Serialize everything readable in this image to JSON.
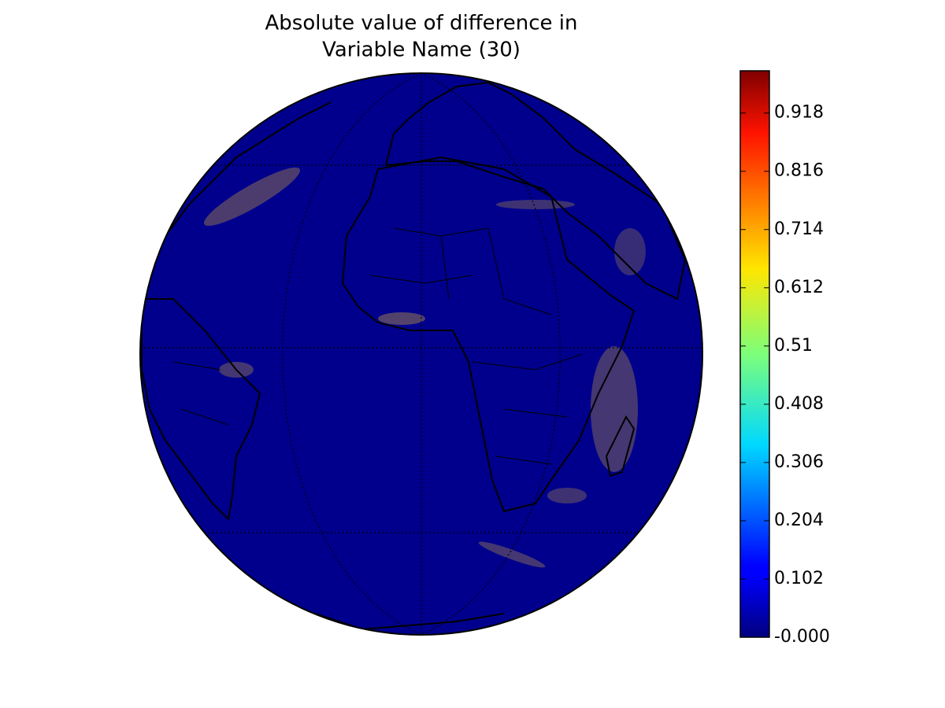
{
  "title": [
    "Absolute value of difference in",
    "Variable Name (30)"
  ],
  "colorbar": {
    "lim": [
      0,
      0.992
    ],
    "ticks": [
      {
        "value": 0,
        "label": "-0.000"
      },
      0.102,
      0.204,
      0.306,
      0.408,
      0.51,
      0.612,
      0.714,
      0.816,
      0.918
    ]
  }
}
